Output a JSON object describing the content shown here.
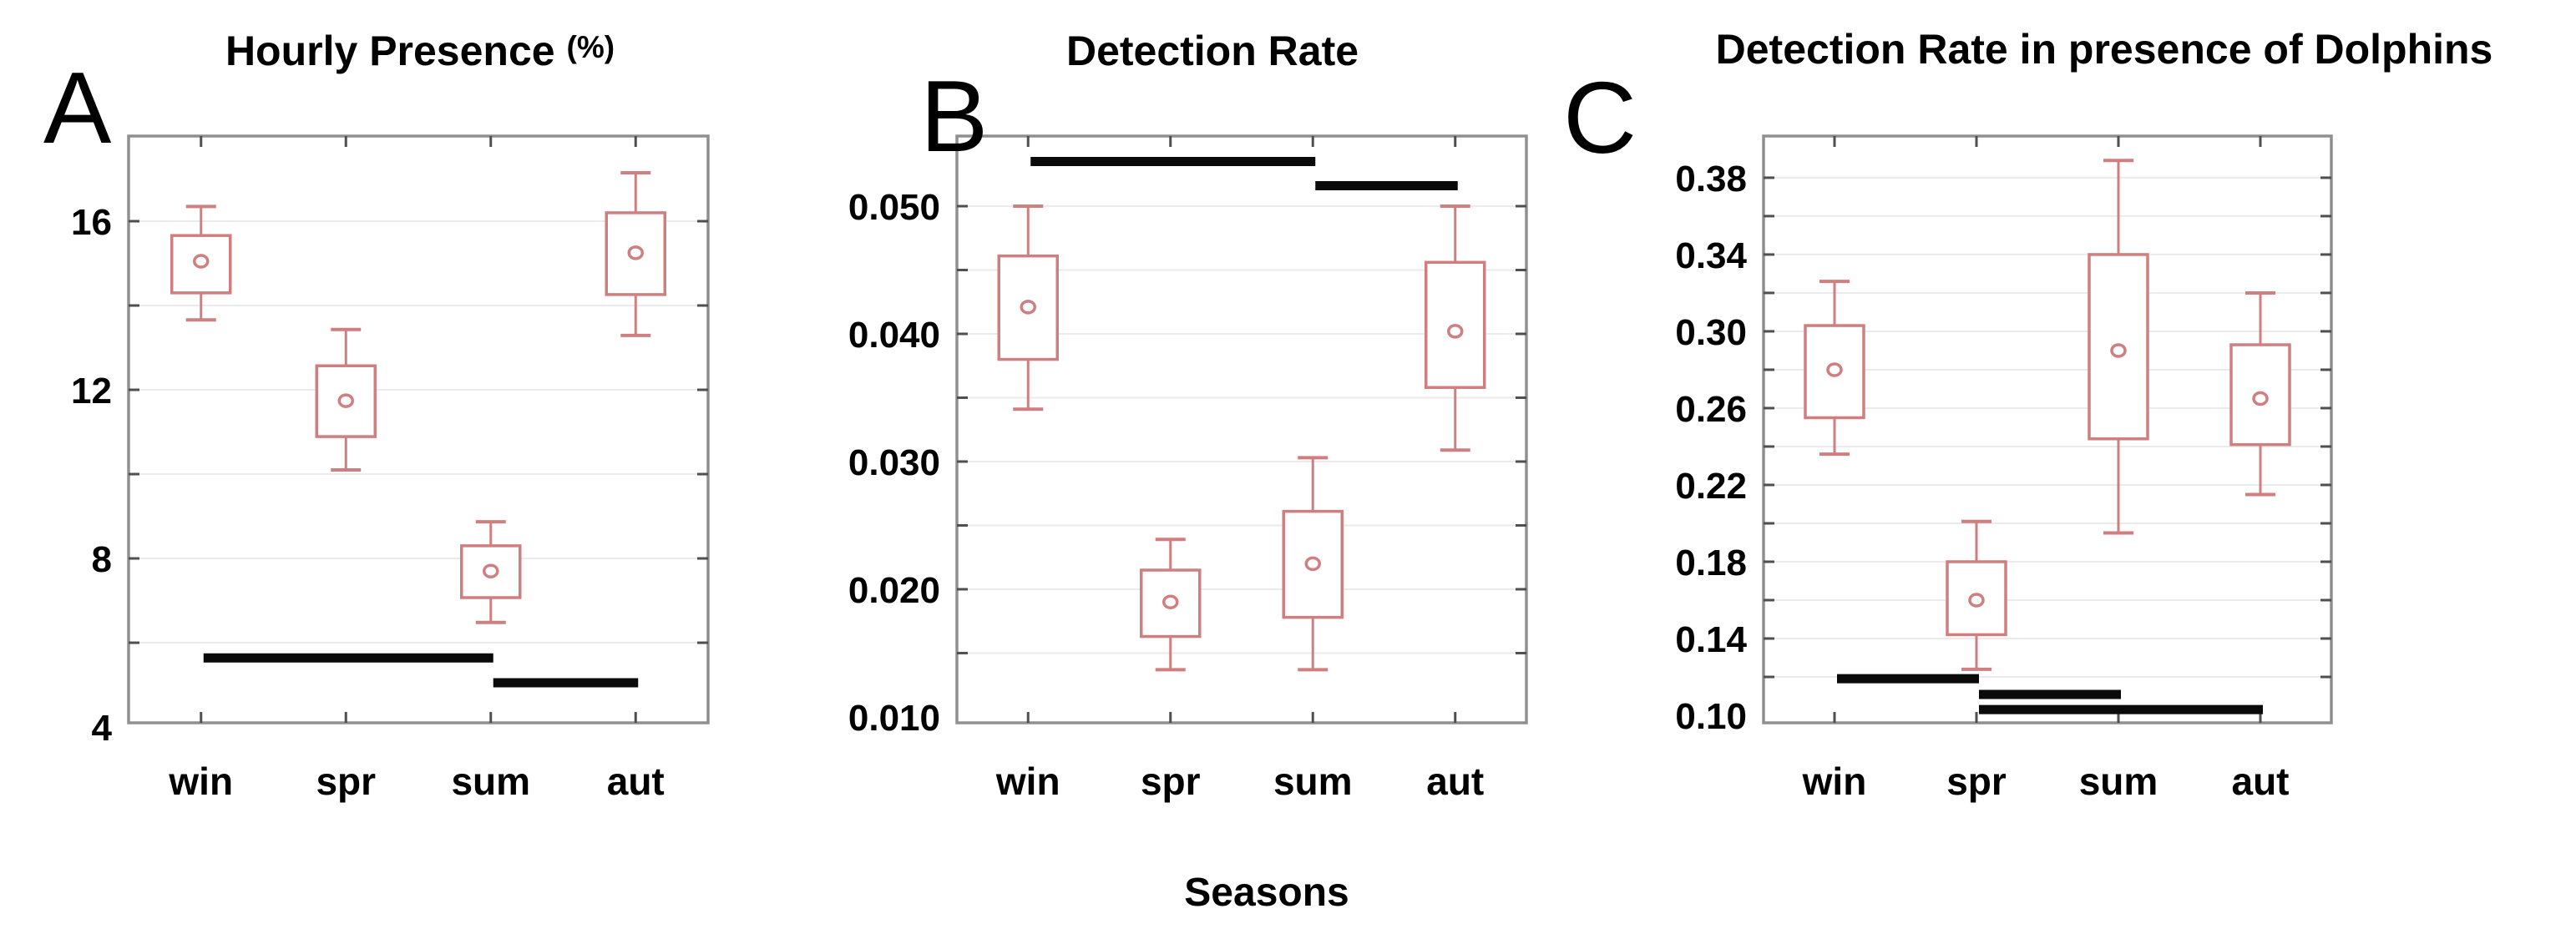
{
  "figure": {
    "xlabel": "Seasons",
    "panels": [
      {
        "letter": "A",
        "title_main": "Hourly Presence",
        "title_suffix": "(%)"
      },
      {
        "letter": "B",
        "title_main": "Detection Rate",
        "title_suffix": ""
      },
      {
        "letter": "C",
        "title_main": "Detection Rate in presence of Dolphins",
        "title_suffix": ""
      }
    ]
  },
  "colors": {
    "box_outline": "#cf7f80",
    "median_marker_fill": "#ffffff",
    "significance_bar": "#0a0a0a",
    "frame": "#909090",
    "gridline": "#ebebeb",
    "tick": "#4f4f4f",
    "text": "#000000",
    "background": "#ffffff"
  },
  "chart_data": [
    {
      "type": "box",
      "panel_letter": "A",
      "title": "Hourly Presence (%)",
      "xlabel": "Seasons",
      "categories": [
        "win",
        "spr",
        "sum",
        "aut"
      ],
      "ylim": [
        4.1,
        18.02
      ],
      "yticks": [
        {
          "label": "16",
          "value": 16
        },
        {
          "label": "12",
          "value": 12
        },
        {
          "label": "8",
          "value": 8
        },
        {
          "label": "4",
          "value": 4
        }
      ],
      "gridlines": [
        6,
        8,
        10,
        12,
        14,
        16
      ],
      "boxes": [
        {
          "category": "win",
          "low": 13.66,
          "q1": 14.3,
          "median": 15.05,
          "q3": 15.66,
          "high": 16.35
        },
        {
          "category": "spr",
          "low": 10.1,
          "q1": 10.89,
          "median": 11.74,
          "q3": 12.57,
          "high": 13.43
        },
        {
          "category": "sum",
          "low": 6.48,
          "q1": 7.07,
          "median": 7.7,
          "q3": 8.3,
          "high": 8.87
        },
        {
          "category": "aut",
          "low": 13.29,
          "q1": 14.26,
          "median": 15.25,
          "q3": 16.2,
          "high": 17.15
        }
      ],
      "significance_bars": [
        {
          "between": [
            "win",
            "sum"
          ],
          "y": 5.64
        },
        {
          "between": [
            "sum",
            "aut"
          ],
          "y": 5.05
        }
      ]
    },
    {
      "type": "box",
      "panel_letter": "B",
      "title": "Detection Rate",
      "xlabel": "Seasons",
      "categories": [
        "win",
        "spr",
        "sum",
        "aut"
      ],
      "ylim": [
        0.00954,
        0.05549
      ],
      "yticks": [
        {
          "label": "0.050",
          "value": 0.05
        },
        {
          "label": "0.040",
          "value": 0.04
        },
        {
          "label": "0.030",
          "value": 0.03
        },
        {
          "label": "0.020",
          "value": 0.02
        },
        {
          "label": "0.010",
          "value": 0.01
        }
      ],
      "gridlines": [
        0.015,
        0.02,
        0.025,
        0.03,
        0.035,
        0.04,
        0.045,
        0.05
      ],
      "boxes": [
        {
          "category": "win",
          "low": 0.0341,
          "q1": 0.038,
          "median": 0.0421,
          "q3": 0.0461,
          "high": 0.05
        },
        {
          "category": "spr",
          "low": 0.0137,
          "q1": 0.0163,
          "median": 0.019,
          "q3": 0.0215,
          "high": 0.0239
        },
        {
          "category": "sum",
          "low": 0.0137,
          "q1": 0.0178,
          "median": 0.022,
          "q3": 0.0261,
          "high": 0.0303
        },
        {
          "category": "aut",
          "low": 0.0309,
          "q1": 0.0358,
          "median": 0.0402,
          "q3": 0.0456,
          "high": 0.05
        }
      ],
      "significance_bars": [
        {
          "between": [
            "win",
            "sum"
          ],
          "y": 0.0535
        },
        {
          "between": [
            "sum",
            "aut"
          ],
          "y": 0.0516
        }
      ]
    },
    {
      "type": "box",
      "panel_letter": "C",
      "title": "Detection Rate in presence of Dolphins",
      "xlabel": "Seasons",
      "categories": [
        "win",
        "spr",
        "sum",
        "aut"
      ],
      "ylim": [
        0.0961,
        0.4017
      ],
      "yticks": [
        {
          "label": "0.38",
          "value": 0.38
        },
        {
          "label": "0.34",
          "value": 0.34
        },
        {
          "label": "0.30",
          "value": 0.3
        },
        {
          "label": "0.26",
          "value": 0.26
        },
        {
          "label": "0.22",
          "value": 0.22
        },
        {
          "label": "0.18",
          "value": 0.18
        },
        {
          "label": "0.14",
          "value": 0.14
        },
        {
          "label": "0.10",
          "value": 0.1
        }
      ],
      "gridlines": [
        0.12,
        0.14,
        0.16,
        0.18,
        0.2,
        0.22,
        0.24,
        0.26,
        0.28,
        0.3,
        0.32,
        0.34,
        0.36,
        0.38
      ],
      "boxes": [
        {
          "category": "win",
          "low": 0.236,
          "q1": 0.255,
          "median": 0.28,
          "q3": 0.303,
          "high": 0.326
        },
        {
          "category": "spr",
          "low": 0.124,
          "q1": 0.142,
          "median": 0.16,
          "q3": 0.18,
          "high": 0.201
        },
        {
          "category": "sum",
          "low": 0.195,
          "q1": 0.244,
          "median": 0.29,
          "q3": 0.34,
          "high": 0.389
        },
        {
          "category": "aut",
          "low": 0.215,
          "q1": 0.241,
          "median": 0.265,
          "q3": 0.293,
          "high": 0.32
        }
      ],
      "significance_bars": [
        {
          "between": [
            "win",
            "spr"
          ],
          "y": 0.1191
        },
        {
          "between": [
            "spr",
            "sum"
          ],
          "y": 0.1109
        },
        {
          "between": [
            "spr",
            "aut"
          ],
          "y": 0.103
        }
      ]
    }
  ]
}
